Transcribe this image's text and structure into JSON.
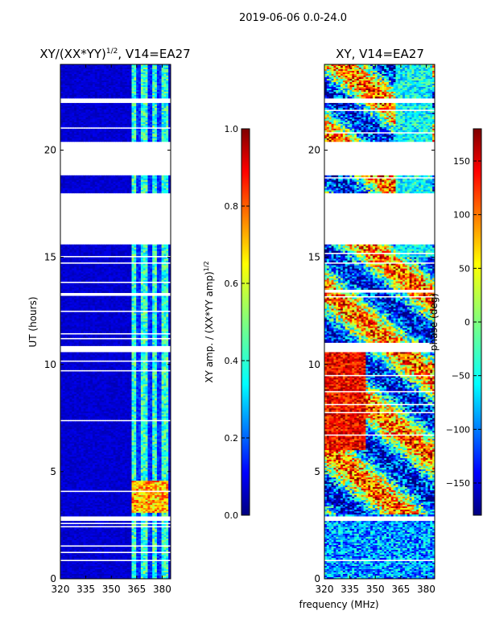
{
  "figure": {
    "suptitle": "2019-06-06 0.0-24.0",
    "shared_xlabel": "frequency (MHz)"
  },
  "chart_data": [
    {
      "type": "heatmap",
      "title_main": "XY/(XX*YY)",
      "title_sup": "1/2",
      "title_rest": ", V14=EA27",
      "xlabel": "",
      "ylabel": "UT (hours)",
      "xlim": [
        320,
        385
      ],
      "ylim": [
        0,
        24
      ],
      "xticks": [
        320,
        335,
        350,
        365,
        380
      ],
      "yticks": [
        0,
        5,
        10,
        15,
        20
      ],
      "colorbar": {
        "label_main": "XY amp. / (XX*YY amp)",
        "label_sup": "1/2",
        "range": [
          0.0,
          1.0
        ],
        "ticks": [
          "0.0",
          "0.2",
          "0.4",
          "0.6",
          "0.8",
          "1.0"
        ],
        "colormap": "jet"
      },
      "colormap_stops": [
        "#00007f",
        "#0000ff",
        "#007fff",
        "#00ffff",
        "#7fff7f",
        "#ffff00",
        "#ff7f00",
        "#ff0000",
        "#7f0000"
      ],
      "gaps_hours": [
        [
          15.6,
          18.0
        ],
        [
          18.8,
          20.4
        ],
        [
          10.6,
          10.9
        ],
        [
          2.7,
          2.9
        ],
        [
          22.2,
          22.4
        ],
        [
          0.8,
          0.9
        ]
      ]
    },
    {
      "type": "heatmap",
      "title": "XY, V14=EA27",
      "xlabel": "frequency (MHz)",
      "ylabel": "",
      "xlim": [
        320,
        385
      ],
      "ylim": [
        0,
        24
      ],
      "xticks": [
        320,
        335,
        350,
        365,
        380
      ],
      "yticks": [
        0,
        5,
        10,
        15,
        20
      ],
      "colorbar": {
        "label": "phase (deg)",
        "range": [
          -180,
          180
        ],
        "ticks": [
          "150",
          "100",
          "50",
          "0",
          "−50",
          "−100",
          "−150"
        ],
        "colormap": "jet"
      },
      "colormap_stops": [
        "#00007f",
        "#0000ff",
        "#007fff",
        "#00ffff",
        "#7fff7f",
        "#ffff00",
        "#ff7f00",
        "#ff0000",
        "#7f0000"
      ],
      "gaps_hours": [
        [
          15.6,
          18.0
        ],
        [
          18.8,
          20.4
        ],
        [
          10.6,
          10.9
        ],
        [
          2.7,
          2.9
        ],
        [
          22.2,
          22.4
        ],
        [
          0.8,
          0.9
        ]
      ]
    }
  ]
}
